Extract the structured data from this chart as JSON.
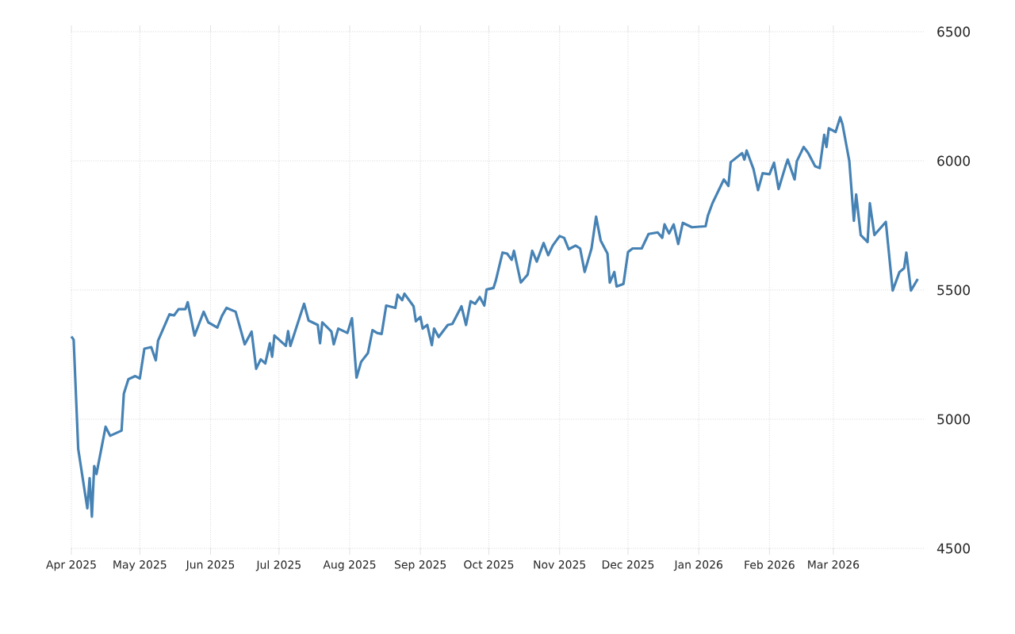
{
  "chart_data": {
    "type": "line",
    "x": [
      "2025-04-01",
      "2025-04-02",
      "2025-04-04",
      "2025-04-08",
      "2025-04-09",
      "2025-04-10",
      "2025-04-11",
      "2025-04-12",
      "2025-04-16",
      "2025-04-18",
      "2025-04-23",
      "2025-04-24",
      "2025-04-26",
      "2025-04-29",
      "2025-05-01",
      "2025-05-03",
      "2025-05-06",
      "2025-05-08",
      "2025-05-09",
      "2025-05-14",
      "2025-05-16",
      "2025-05-18",
      "2025-05-21",
      "2025-05-22",
      "2025-05-25",
      "2025-05-29",
      "2025-05-31",
      "2025-06-04",
      "2025-06-06",
      "2025-06-08",
      "2025-06-12",
      "2025-06-16",
      "2025-06-19",
      "2025-06-21",
      "2025-06-23",
      "2025-06-25",
      "2025-06-27",
      "2025-06-28",
      "2025-06-29",
      "2025-07-04",
      "2025-07-05",
      "2025-07-06",
      "2025-07-12",
      "2025-07-14",
      "2025-07-18",
      "2025-07-19",
      "2025-07-20",
      "2025-07-24",
      "2025-07-25",
      "2025-07-27",
      "2025-07-31",
      "2025-08-02",
      "2025-08-04",
      "2025-08-06",
      "2025-08-09",
      "2025-08-11",
      "2025-08-13",
      "2025-08-15",
      "2025-08-17",
      "2025-08-21",
      "2025-08-22",
      "2025-08-24",
      "2025-08-25",
      "2025-08-29",
      "2025-08-30",
      "2025-09-01",
      "2025-09-02",
      "2025-09-04",
      "2025-09-06",
      "2025-09-07",
      "2025-09-09",
      "2025-09-13",
      "2025-09-15",
      "2025-09-19",
      "2025-09-21",
      "2025-09-23",
      "2025-09-25",
      "2025-09-27",
      "2025-09-29",
      "2025-09-30",
      "2025-10-03",
      "2025-10-04",
      "2025-10-07",
      "2025-10-09",
      "2025-10-11",
      "2025-10-12",
      "2025-10-15",
      "2025-10-18",
      "2025-10-20",
      "2025-10-22",
      "2025-10-25",
      "2025-10-27",
      "2025-10-29",
      "2025-11-01",
      "2025-11-03",
      "2025-11-05",
      "2025-11-08",
      "2025-11-10",
      "2025-11-12",
      "2025-11-15",
      "2025-11-17",
      "2025-11-19",
      "2025-11-22",
      "2025-11-23",
      "2025-11-25",
      "2025-11-26",
      "2025-11-29",
      "2025-12-01",
      "2025-12-03",
      "2025-12-07",
      "2025-12-10",
      "2025-12-14",
      "2025-12-16",
      "2025-12-17",
      "2025-12-19",
      "2025-12-21",
      "2025-12-23",
      "2025-12-25",
      "2025-12-29",
      "2026-01-04",
      "2026-01-05",
      "2026-01-07",
      "2026-01-12",
      "2026-01-14",
      "2026-01-15",
      "2026-01-20",
      "2026-01-21",
      "2026-01-22",
      "2026-01-25",
      "2026-01-27",
      "2026-01-29",
      "2026-02-01",
      "2026-02-03",
      "2026-02-05",
      "2026-02-08",
      "2026-02-09",
      "2026-02-12",
      "2026-02-13",
      "2026-02-16",
      "2026-02-18",
      "2026-02-21",
      "2026-02-23",
      "2026-02-25",
      "2026-02-26",
      "2026-02-27",
      "2026-03-02",
      "2026-03-04",
      "2026-03-05",
      "2026-03-08",
      "2026-03-10",
      "2026-03-11",
      "2026-03-13",
      "2026-03-16",
      "2026-03-17",
      "2026-03-19",
      "2026-03-24",
      "2026-03-27",
      "2026-03-30",
      "2026-04-01",
      "2026-04-02",
      "2026-04-04",
      "2026-04-07"
    ],
    "values": [
      5320,
      5308,
      4885,
      4655,
      4772,
      4623,
      4819,
      4788,
      4971,
      4936,
      4956,
      5099,
      5155,
      5167,
      5158,
      5273,
      5279,
      5228,
      5304,
      5406,
      5402,
      5426,
      5426,
      5453,
      5324,
      5416,
      5375,
      5355,
      5400,
      5431,
      5416,
      5290,
      5339,
      5195,
      5232,
      5216,
      5294,
      5242,
      5324,
      5284,
      5341,
      5284,
      5447,
      5382,
      5365,
      5294,
      5375,
      5339,
      5290,
      5351,
      5334,
      5391,
      5161,
      5222,
      5256,
      5345,
      5334,
      5330,
      5440,
      5431,
      5482,
      5461,
      5486,
      5437,
      5379,
      5396,
      5351,
      5365,
      5287,
      5351,
      5318,
      5365,
      5369,
      5437,
      5365,
      5457,
      5447,
      5473,
      5440,
      5502,
      5508,
      5535,
      5645,
      5641,
      5617,
      5652,
      5529,
      5560,
      5652,
      5610,
      5682,
      5635,
      5672,
      5709,
      5702,
      5658,
      5672,
      5661,
      5570,
      5661,
      5784,
      5692,
      5641,
      5529,
      5570,
      5514,
      5524,
      5647,
      5661,
      5661,
      5717,
      5723,
      5702,
      5754,
      5719,
      5754,
      5678,
      5760,
      5743,
      5747,
      5788,
      5836,
      5928,
      5903,
      5995,
      6030,
      6005,
      6040,
      5968,
      5887,
      5952,
      5948,
      5993,
      5891,
      5979,
      6005,
      5928,
      5999,
      6054,
      6030,
      5979,
      5972,
      6101,
      6054,
      6126,
      6112,
      6169,
      6142,
      5999,
      5768,
      5870,
      5713,
      5686,
      5836,
      5713,
      5764,
      5498,
      5570,
      5584,
      5645,
      5498,
      5543
    ],
    "color": "#4682b4",
    "xlim": [
      "2025-04-01",
      "2026-04-10"
    ],
    "xticks": [
      {
        "value": "2025-04-01",
        "label": "Apr 2025"
      },
      {
        "value": "2025-05-01",
        "label": "May 2025"
      },
      {
        "value": "2025-06-01",
        "label": "Jun 2025"
      },
      {
        "value": "2025-07-01",
        "label": "Jul 2025"
      },
      {
        "value": "2025-08-01",
        "label": "Aug 2025"
      },
      {
        "value": "2025-09-01",
        "label": "Sep 2025"
      },
      {
        "value": "2025-10-01",
        "label": "Oct 2025"
      },
      {
        "value": "2025-11-01",
        "label": "Nov 2025"
      },
      {
        "value": "2025-12-01",
        "label": "Dec 2025"
      },
      {
        "value": "2026-01-01",
        "label": "Jan 2026"
      },
      {
        "value": "2026-02-01",
        "label": "Feb 2026"
      },
      {
        "value": "2026-03-01",
        "label": "Mar 2026"
      }
    ],
    "ylim": [
      4500,
      6500
    ],
    "yticks": [
      4500,
      5000,
      5500,
      6000,
      6500
    ],
    "grid": true
  }
}
